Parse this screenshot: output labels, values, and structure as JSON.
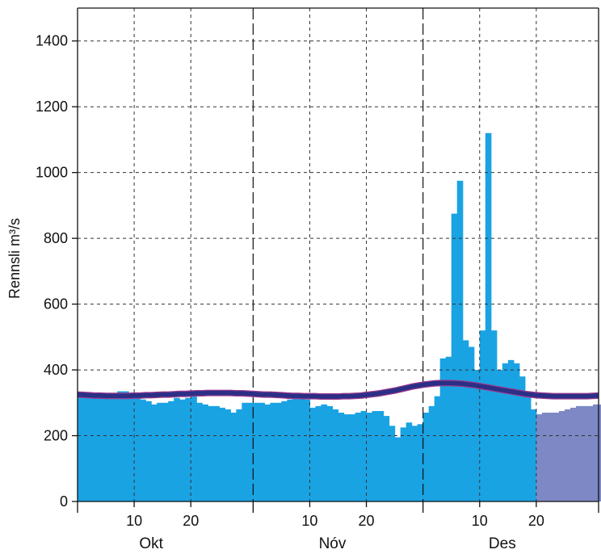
{
  "chart_data": {
    "type": "bar",
    "ylabel": "Rennsli m³/s",
    "ylim": [
      0,
      1500
    ],
    "y_ticks": [
      0,
      200,
      400,
      600,
      800,
      1000,
      1200,
      1400
    ],
    "grid": true,
    "x_day_ticks": [
      {
        "day": 10,
        "label": "10"
      },
      {
        "day": 20,
        "label": "20"
      },
      {
        "day": 41,
        "label": "10"
      },
      {
        "day": 51,
        "label": "20"
      },
      {
        "day": 71,
        "label": "10"
      },
      {
        "day": 81,
        "label": "20"
      }
    ],
    "month_boundaries": [
      0,
      31,
      61,
      92
    ],
    "months": [
      {
        "label": "Okt",
        "day": 13
      },
      {
        "label": "Nóv",
        "day": 45
      },
      {
        "label": "Des",
        "day": 75
      }
    ],
    "colors": {
      "observed": "#1aa3e3",
      "forecast": "#7d88c4",
      "mean_line": "#2b2f86",
      "mean_line_edge": "#9a3a8f",
      "grid": "#333333"
    },
    "series": [
      {
        "kind": "observed_daily_flow",
        "values": [
          330,
          330,
          330,
          328,
          328,
          325,
          330,
          335,
          335,
          330,
          320,
          310,
          305,
          295,
          300,
          300,
          305,
          315,
          310,
          315,
          320,
          300,
          295,
          290,
          290,
          285,
          280,
          270,
          280,
          300,
          300,
          300,
          300,
          295,
          300,
          300,
          305,
          310,
          315,
          320,
          310,
          285,
          290,
          295,
          290,
          280,
          270,
          265,
          265,
          270,
          275,
          270,
          275,
          275,
          260,
          230,
          195,
          225,
          240,
          230,
          235,
          270,
          290,
          320,
          435,
          440,
          875,
          975,
          490,
          470,
          400,
          520,
          1120,
          520,
          400,
          420,
          430,
          420,
          380,
          320,
          280
        ]
      },
      {
        "kind": "forecast_daily_flow",
        "values": [
          265,
          270,
          270,
          270,
          275,
          280,
          285,
          290,
          290,
          290,
          295,
          295
        ]
      },
      {
        "kind": "mean_flow_line",
        "values": [
          325,
          324,
          323,
          322,
          322,
          321,
          321,
          321,
          321,
          321,
          322,
          322,
          323,
          323,
          324,
          325,
          325,
          326,
          327,
          327,
          328,
          329,
          329,
          330,
          330,
          330,
          330,
          330,
          329,
          329,
          328,
          327,
          326,
          325,
          325,
          324,
          323,
          322,
          321,
          321,
          320,
          320,
          320,
          319,
          319,
          319,
          319,
          320,
          320,
          321,
          322,
          324,
          326,
          328,
          331,
          334,
          337,
          341,
          345,
          349,
          352,
          355,
          357,
          359,
          360,
          360,
          360,
          359,
          358,
          356,
          354,
          351,
          348,
          345,
          342,
          339,
          336,
          333,
          330,
          327,
          325,
          323,
          322,
          321,
          320,
          320,
          320,
          320,
          320,
          320,
          320,
          321,
          322
        ]
      }
    ]
  }
}
